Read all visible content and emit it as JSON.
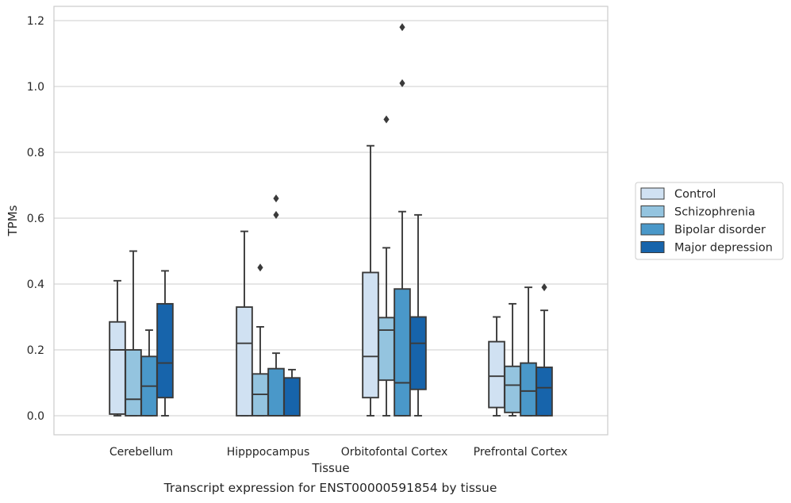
{
  "chart_data": {
    "type": "boxplot",
    "xlabel": "Tissue",
    "ylabel": "TPMs",
    "ylim": [
      -0.055,
      1.24
    ],
    "yticks": [
      0.0,
      0.2,
      0.4,
      0.6,
      0.8,
      1.0,
      1.2
    ],
    "ytick_labels": [
      "0.0",
      "0.2",
      "0.4",
      "0.6",
      "0.8",
      "1.0",
      "1.2"
    ],
    "grid": "horizontal",
    "legend_position": "right",
    "categories": [
      "Cerebellum",
      "Hipppocampus",
      "Orbitofontal Cortex",
      "Prefrontal Cortex"
    ],
    "series": [
      {
        "name": "Control",
        "color": "#d0e1f2",
        "boxes": [
          {
            "whislo": 0.0,
            "q1": 0.005,
            "med": 0.2,
            "q3": 0.285,
            "whishi": 0.41,
            "fliers": []
          },
          {
            "whislo": 0.0,
            "q1": 0.0,
            "med": 0.22,
            "q3": 0.33,
            "whishi": 0.56,
            "fliers": []
          },
          {
            "whislo": 0.0,
            "q1": 0.055,
            "med": 0.18,
            "q3": 0.435,
            "whishi": 0.82,
            "fliers": []
          },
          {
            "whislo": 0.0,
            "q1": 0.025,
            "med": 0.12,
            "q3": 0.225,
            "whishi": 0.3,
            "fliers": []
          }
        ]
      },
      {
        "name": "Schizophrenia",
        "color": "#94c4df",
        "boxes": [
          {
            "whislo": 0.0,
            "q1": 0.0,
            "med": 0.05,
            "q3": 0.2,
            "whishi": 0.5,
            "fliers": []
          },
          {
            "whislo": 0.0,
            "q1": 0.0,
            "med": 0.065,
            "q3": 0.127,
            "whishi": 0.27,
            "fliers": [
              0.45
            ]
          },
          {
            "whislo": 0.0,
            "q1": 0.108,
            "med": 0.26,
            "q3": 0.298,
            "whishi": 0.51,
            "fliers": [
              0.9
            ]
          },
          {
            "whislo": 0.0,
            "q1": 0.01,
            "med": 0.093,
            "q3": 0.15,
            "whishi": 0.34,
            "fliers": []
          }
        ]
      },
      {
        "name": "Bipolar disorder",
        "color": "#4a98c9",
        "boxes": [
          {
            "whislo": 0.0,
            "q1": 0.0,
            "med": 0.09,
            "q3": 0.18,
            "whishi": 0.26,
            "fliers": []
          },
          {
            "whislo": 0.0,
            "q1": 0.0,
            "med": 0.0,
            "q3": 0.143,
            "whishi": 0.19,
            "fliers": [
              0.61,
              0.66
            ]
          },
          {
            "whislo": 0.0,
            "q1": 0.0,
            "med": 0.1,
            "q3": 0.385,
            "whishi": 0.62,
            "fliers": [
              1.01,
              1.18
            ]
          },
          {
            "whislo": 0.0,
            "q1": 0.0,
            "med": 0.075,
            "q3": 0.16,
            "whishi": 0.39,
            "fliers": []
          }
        ]
      },
      {
        "name": "Major depression",
        "color": "#1764ab",
        "boxes": [
          {
            "whislo": 0.0,
            "q1": 0.055,
            "med": 0.16,
            "q3": 0.34,
            "whishi": 0.44,
            "fliers": []
          },
          {
            "whislo": 0.0,
            "q1": 0.0,
            "med": 0.0,
            "q3": 0.115,
            "whishi": 0.14,
            "fliers": []
          },
          {
            "whislo": 0.0,
            "q1": 0.08,
            "med": 0.22,
            "q3": 0.3,
            "whishi": 0.61,
            "fliers": []
          },
          {
            "whislo": 0.0,
            "q1": 0.0,
            "med": 0.085,
            "q3": 0.147,
            "whishi": 0.32,
            "fliers": [
              0.39
            ]
          }
        ]
      }
    ]
  },
  "caption": "Transcript expression for ENST00000591854 by tissue",
  "colors": {
    "grid": "#cccccc",
    "frame": "#cccccc",
    "box_edge": "#3a3a3a",
    "text": "#262626"
  }
}
